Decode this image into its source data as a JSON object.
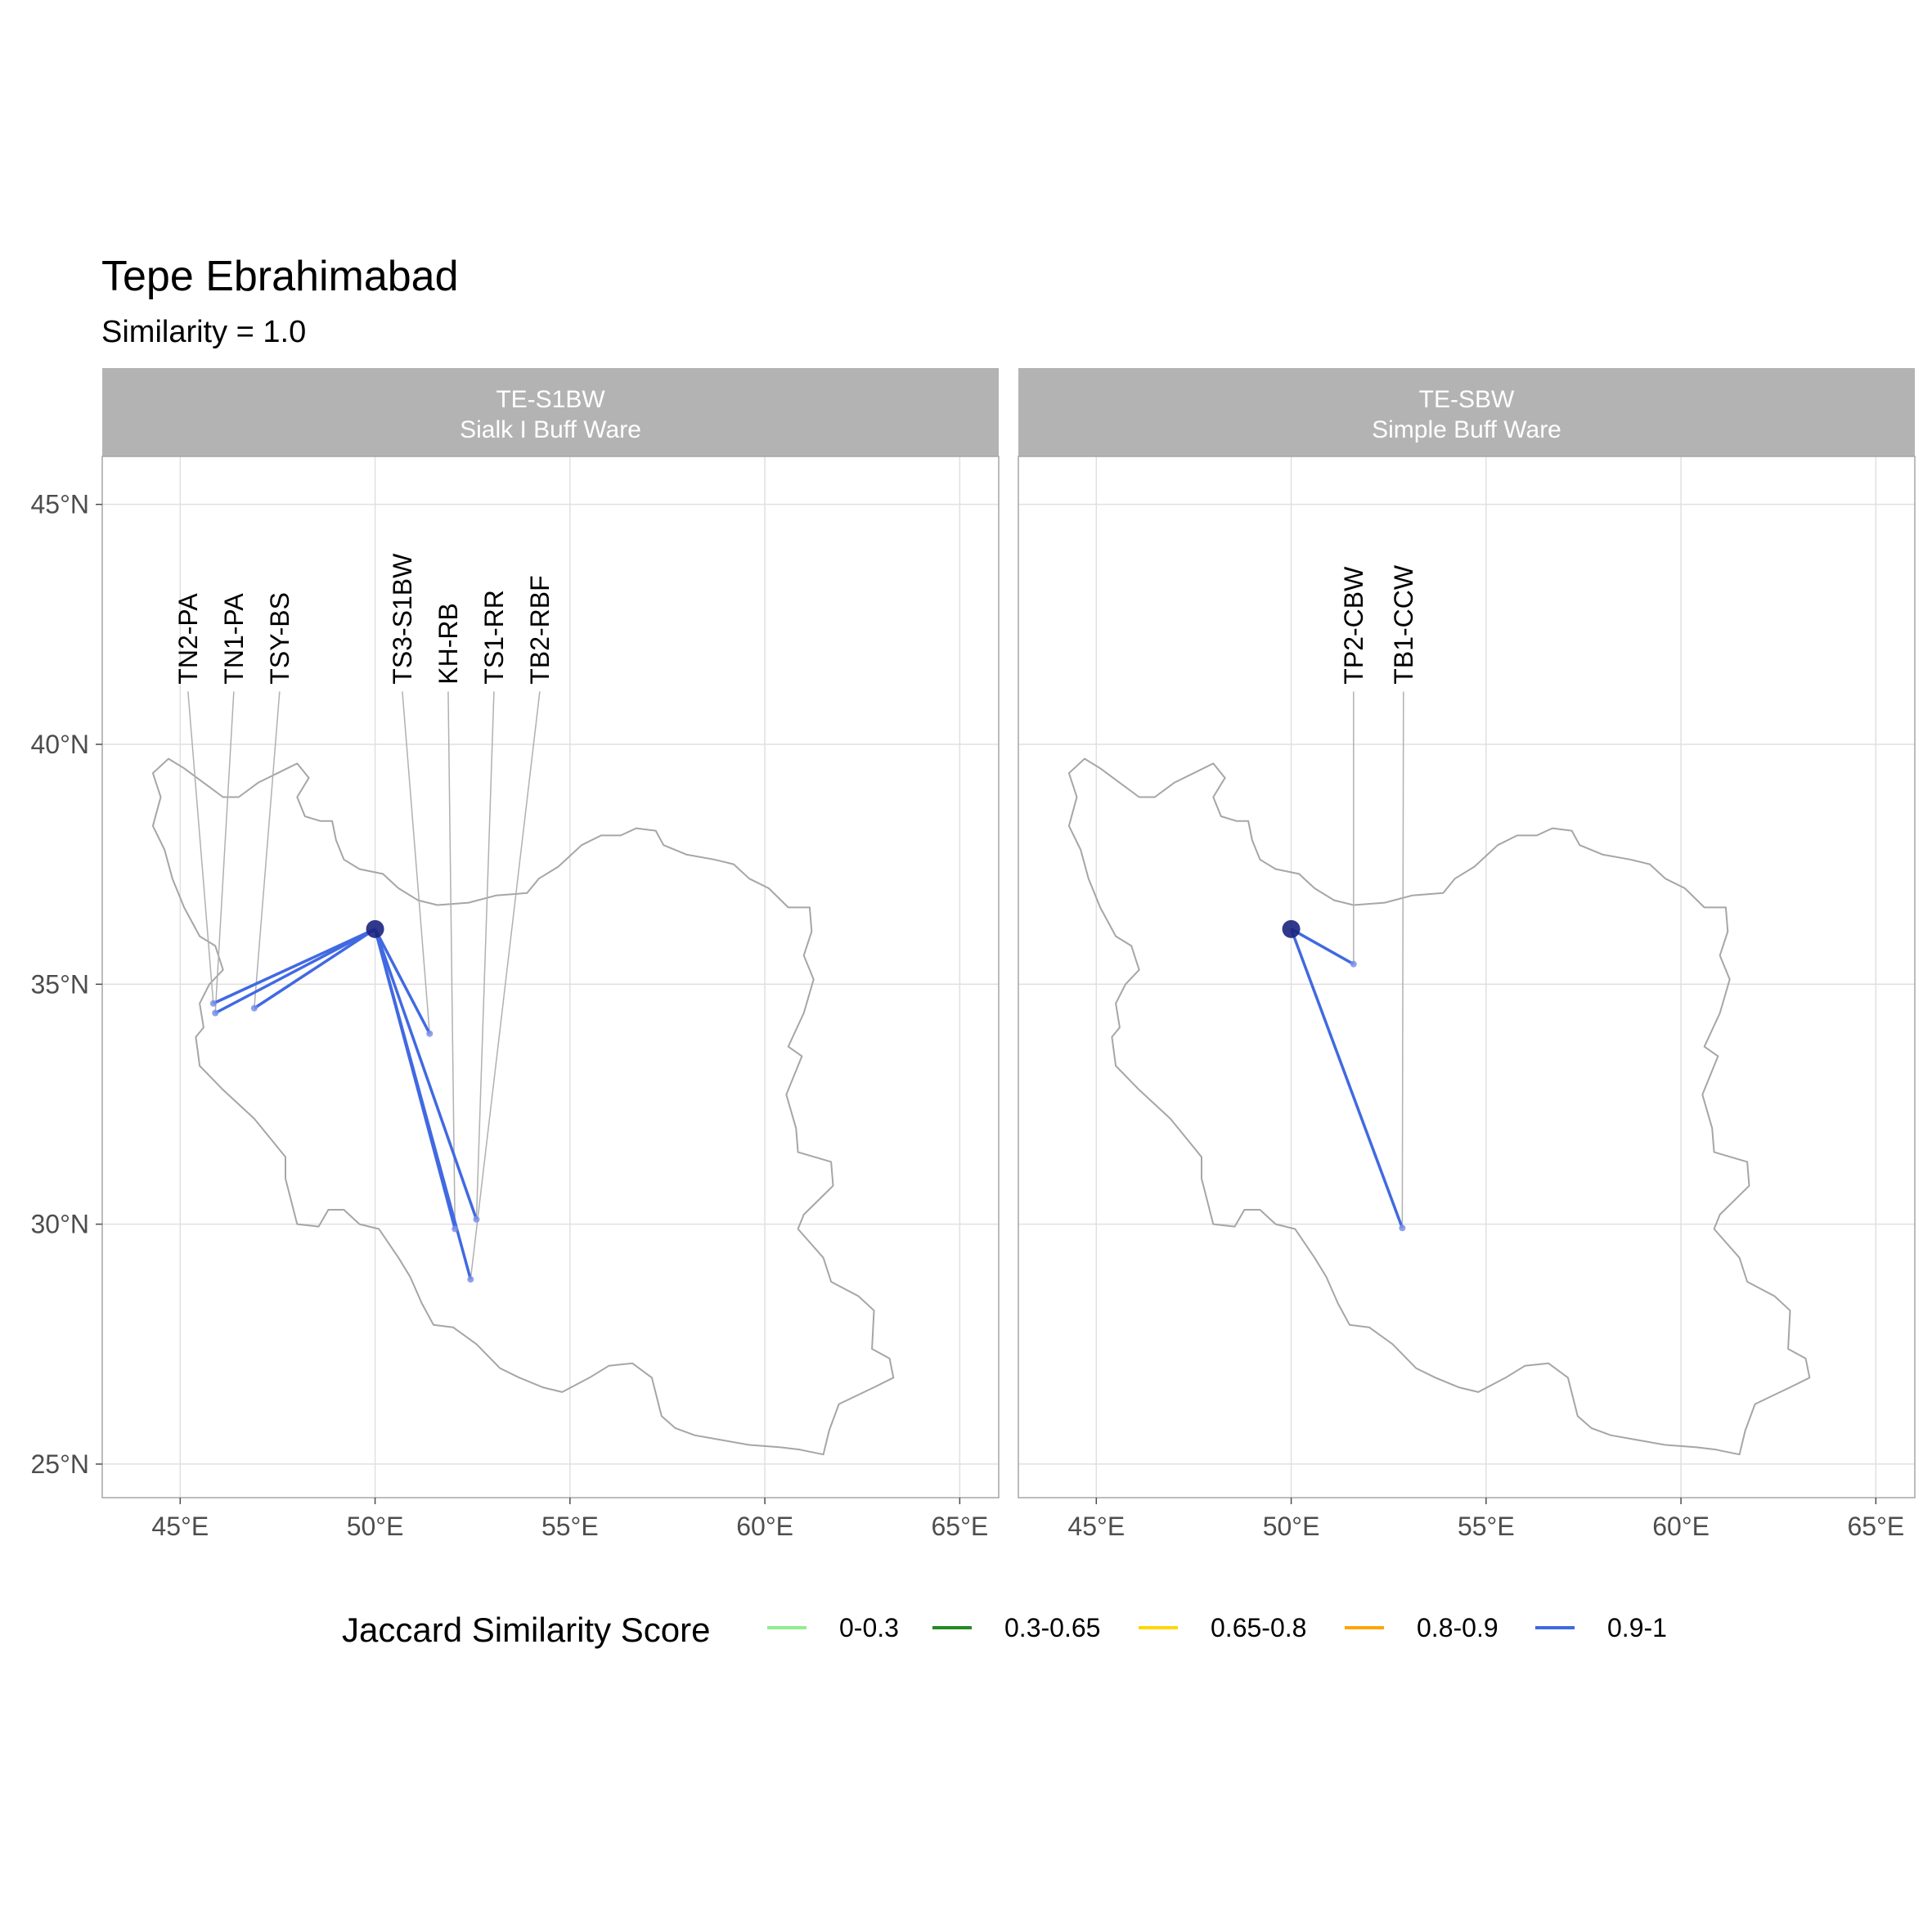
{
  "chart_data": {
    "type": "map",
    "title": "Tepe Ebrahimabad",
    "subtitle": "Similarity = 1.0",
    "x_ticks": [
      "45°E",
      "50°E",
      "55°E",
      "60°E",
      "65°E"
    ],
    "y_ticks": [
      "25°N",
      "30°N",
      "35°N",
      "40°N",
      "45°N"
    ],
    "x_tick_values": [
      45,
      50,
      55,
      60,
      65
    ],
    "y_tick_values": [
      25,
      30,
      35,
      40,
      45
    ],
    "xlim": [
      43,
      66
    ],
    "ylim": [
      24.3,
      46
    ],
    "origin": {
      "lon": 50.0,
      "lat": 36.15
    },
    "panels": [
      {
        "strip_line1": "TE-S1BW",
        "strip_line2": "Sialk I Buff Ware",
        "sites": [
          {
            "label": "TN2-PA",
            "lon": 45.85,
            "lat": 34.6,
            "score": "0.9-1"
          },
          {
            "label": "TN1-PA",
            "lon": 45.9,
            "lat": 34.4,
            "score": "0.9-1"
          },
          {
            "label": "TSY-BS",
            "lon": 46.9,
            "lat": 34.5,
            "score": "0.9-1"
          },
          {
            "label": "TS3-S1BW",
            "lon": 51.4,
            "lat": 33.97,
            "score": "0.9-1"
          },
          {
            "label": "KH-RB",
            "lon": 52.05,
            "lat": 29.9,
            "score": "0.9-1"
          },
          {
            "label": "TS1-RR",
            "lon": 52.6,
            "lat": 30.1,
            "score": "0.9-1"
          },
          {
            "label": "TB2-RBF",
            "lon": 52.45,
            "lat": 28.85,
            "score": "0.9-1"
          }
        ]
      },
      {
        "strip_line1": "TE-SBW",
        "strip_line2": "Simple Buff Ware",
        "sites": [
          {
            "label": "TP2-CBW",
            "lon": 51.6,
            "lat": 35.42,
            "score": "0.9-1"
          },
          {
            "label": "TB1-CCW",
            "lon": 52.85,
            "lat": 29.92,
            "score": "0.9-1"
          }
        ]
      }
    ],
    "legend": {
      "title": "Jaccard Similarity Score",
      "position": "bottom",
      "items": [
        {
          "label": "0-0.3",
          "color": "#90EE90"
        },
        {
          "label": "0.3-0.65",
          "color": "#228B22"
        },
        {
          "label": "0.65-0.8",
          "color": "#FFD700"
        },
        {
          "label": "0.8-0.9",
          "color": "#FFA500"
        },
        {
          "label": "0.9-1",
          "color": "#4169E1"
        }
      ]
    },
    "colors": {
      "origin_point": "#1a237e",
      "border": "#a6a6a6",
      "grid": "#e0e0e0",
      "strip": "#b3b3b3"
    }
  }
}
